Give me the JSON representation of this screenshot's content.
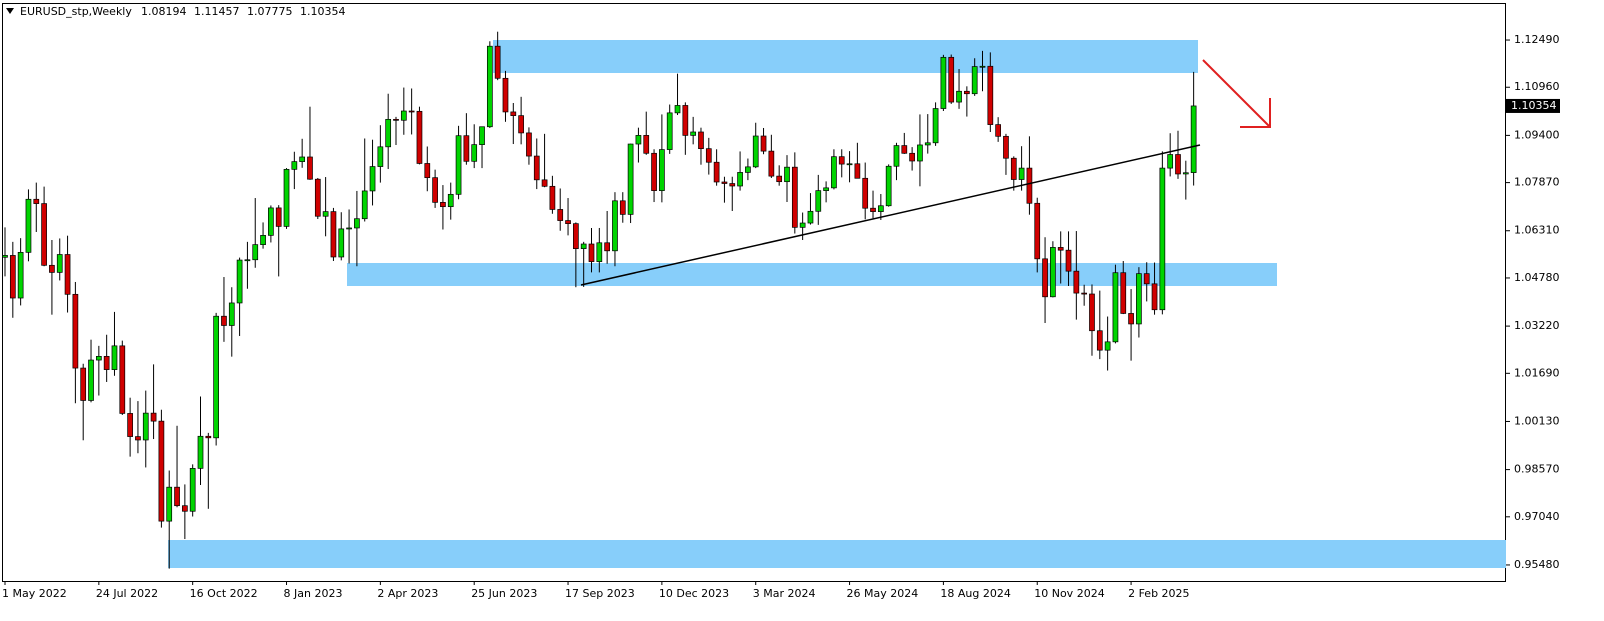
{
  "chart_data": {
    "type": "candlestick",
    "title": "EURUSD_stp,Weekly",
    "categories": [
      "1 May 2022",
      null,
      null,
      null,
      null,
      null,
      null,
      null,
      null,
      null,
      null,
      null,
      "24 Jul 2022",
      null,
      null,
      null,
      null,
      null,
      null,
      null,
      null,
      null,
      null,
      null,
      "16 Oct 2022",
      null,
      null,
      null,
      null,
      null,
      null,
      null,
      null,
      null,
      null,
      null,
      "8 Jan 2023",
      null,
      null,
      null,
      null,
      null,
      null,
      null,
      null,
      null,
      null,
      null,
      "2 Apr 2023",
      null,
      null,
      null,
      null,
      null,
      null,
      null,
      null,
      null,
      null,
      null,
      "25 Jun 2023",
      null,
      null,
      null,
      null,
      null,
      null,
      null,
      null,
      null,
      null,
      null,
      "17 Sep 2023",
      null,
      null,
      null,
      null,
      null,
      null,
      null,
      null,
      null,
      null,
      null,
      "10 Dec 2023",
      null,
      null,
      null,
      null,
      null,
      null,
      null,
      null,
      null,
      null,
      null,
      "3 Mar 2024",
      null,
      null,
      null,
      null,
      null,
      null,
      null,
      null,
      null,
      null,
      null,
      "26 May 2024",
      null,
      null,
      null,
      null,
      null,
      null,
      null,
      null,
      null,
      null,
      null,
      "18 Aug 2024",
      null,
      null,
      null,
      null,
      null,
      null,
      null,
      null,
      null,
      null,
      null,
      "10 Nov 2024",
      null,
      null,
      null,
      null,
      null,
      null,
      null,
      null,
      null,
      null,
      null,
      "2 Feb 2025",
      null,
      null,
      null,
      null,
      null,
      null,
      null,
      null
    ],
    "ohlc": [
      [
        1.0545,
        1.0642,
        1.0483,
        1.0551
      ],
      [
        1.0551,
        1.0595,
        1.0349,
        1.0413
      ],
      [
        1.0413,
        1.0607,
        1.0389,
        1.0561
      ],
      [
        1.0561,
        1.0765,
        1.0532,
        1.0733
      ],
      [
        1.0733,
        1.0787,
        1.0627,
        1.0719
      ],
      [
        1.0719,
        1.0774,
        1.0516,
        1.0519
      ],
      [
        1.0519,
        1.0601,
        1.0359,
        1.0496
      ],
      [
        1.0496,
        1.0606,
        1.047,
        1.0554
      ],
      [
        1.0554,
        1.0615,
        1.0366,
        1.0425
      ],
      [
        1.0425,
        1.0465,
        1.0072,
        1.0186
      ],
      [
        1.0186,
        1.02,
        0.9952,
        1.0081
      ],
      [
        1.0081,
        1.0278,
        1.0075,
        1.0212
      ],
      [
        1.0212,
        1.0258,
        1.0097,
        1.0224
      ],
      [
        1.0224,
        1.0294,
        1.0141,
        1.0181
      ],
      [
        1.0181,
        1.0368,
        1.0161,
        1.0258
      ],
      [
        1.0258,
        1.0275,
        1.0034,
        1.0039
      ],
      [
        1.0039,
        1.009,
        0.9899,
        0.9964
      ],
      [
        0.9964,
        1.0079,
        0.991,
        0.9953
      ],
      [
        0.9953,
        1.0113,
        0.9864,
        1.004
      ],
      [
        1.004,
        1.0198,
        0.9956,
        1.0014
      ],
      [
        1.0014,
        1.0051,
        0.9669,
        0.969
      ],
      [
        0.969,
        0.9854,
        0.9536,
        0.98
      ],
      [
        0.98,
        0.9999,
        0.9735,
        0.974
      ],
      [
        0.974,
        0.9809,
        0.9632,
        0.9722
      ],
      [
        0.9722,
        0.9874,
        0.9705,
        0.9861
      ],
      [
        0.9861,
        1.0094,
        0.9807,
        0.9965
      ],
      [
        0.9965,
        0.9976,
        0.973,
        0.996
      ],
      [
        0.996,
        1.0365,
        0.9935,
        1.0354
      ],
      [
        1.0354,
        1.0481,
        1.0271,
        1.0324
      ],
      [
        1.0324,
        1.0448,
        1.0223,
        1.0397
      ],
      [
        1.0397,
        1.0544,
        1.029,
        1.0536
      ],
      [
        1.0536,
        1.0595,
        1.0443,
        1.0537
      ],
      [
        1.0537,
        1.0737,
        1.0511,
        1.0586
      ],
      [
        1.0586,
        1.0658,
        1.0573,
        1.0616
      ],
      [
        1.0616,
        1.0713,
        1.0593,
        1.0705
      ],
      [
        1.0705,
        1.0714,
        1.0483,
        1.0645
      ],
      [
        1.0645,
        1.0834,
        1.0637,
        1.083
      ],
      [
        1.083,
        1.0887,
        1.0766,
        1.0855
      ],
      [
        1.0855,
        1.0929,
        1.0835,
        1.087
      ],
      [
        1.087,
        1.1033,
        1.0796,
        1.0798
      ],
      [
        1.0798,
        1.0802,
        1.0669,
        1.0678
      ],
      [
        1.0678,
        1.0805,
        1.0613,
        1.0693
      ],
      [
        1.0693,
        1.0705,
        1.0533,
        1.0546
      ],
      [
        1.0546,
        1.0691,
        1.0535,
        1.0637
      ],
      [
        1.0637,
        1.07,
        1.0525,
        1.064
      ],
      [
        1.064,
        1.076,
        1.0516,
        1.067
      ],
      [
        1.067,
        1.093,
        1.0661,
        1.076
      ],
      [
        1.076,
        1.0926,
        1.0713,
        1.0839
      ],
      [
        1.0839,
        1.0973,
        1.0787,
        1.0903
      ],
      [
        1.0903,
        1.1075,
        1.0831,
        1.0992
      ],
      [
        1.0992,
        1.1,
        1.0909,
        1.0989
      ],
      [
        1.0989,
        1.1095,
        1.0942,
        1.1019
      ],
      [
        1.1019,
        1.1092,
        1.0943,
        1.1018
      ],
      [
        1.1018,
        1.1033,
        1.0846,
        1.0849
      ],
      [
        1.0849,
        1.0904,
        1.0759,
        1.0803
      ],
      [
        1.0803,
        1.0829,
        1.0705,
        1.0723
      ],
      [
        1.0723,
        1.0779,
        1.0635,
        1.0709
      ],
      [
        1.0709,
        1.0787,
        1.0667,
        1.0749
      ],
      [
        1.0749,
        1.0971,
        1.0733,
        1.0939
      ],
      [
        1.0939,
        1.1012,
        1.0845,
        1.0856
      ],
      [
        1.0856,
        1.0976,
        1.0834,
        1.091
      ],
      [
        1.091,
        1.0968,
        1.0834,
        1.0968
      ],
      [
        1.0968,
        1.1245,
        1.0964,
        1.1229
      ],
      [
        1.1229,
        1.1276,
        1.1119,
        1.1125
      ],
      [
        1.1125,
        1.1149,
        1.0984,
        1.1016
      ],
      [
        1.1016,
        1.1045,
        1.0912,
        1.1004
      ],
      [
        1.1004,
        1.1065,
        1.0911,
        1.0948
      ],
      [
        1.0948,
        1.0966,
        1.0845,
        1.0873
      ],
      [
        1.0873,
        1.093,
        1.0766,
        1.0796
      ],
      [
        1.0796,
        1.0945,
        1.0772,
        1.0775
      ],
      [
        1.0775,
        1.0809,
        1.0686,
        1.07
      ],
      [
        1.07,
        1.0768,
        1.0631,
        1.0664
      ],
      [
        1.0664,
        1.0737,
        1.0616,
        1.0654
      ],
      [
        1.0654,
        1.0658,
        1.0448,
        1.0573
      ],
      [
        1.0573,
        1.0595,
        1.0449,
        1.0588
      ],
      [
        1.0588,
        1.064,
        1.0496,
        1.0531
      ],
      [
        1.0531,
        1.064,
        1.0496,
        1.0592
      ],
      [
        1.0592,
        1.0695,
        1.0524,
        1.0566
      ],
      [
        1.0566,
        1.0756,
        1.0516,
        1.0728
      ],
      [
        1.0728,
        1.0756,
        1.0657,
        1.0684
      ],
      [
        1.0684,
        1.0913,
        1.0656,
        1.0912
      ],
      [
        1.0912,
        1.0965,
        1.0852,
        1.094
      ],
      [
        1.094,
        1.1017,
        1.0877,
        1.0882
      ],
      [
        1.0882,
        1.0895,
        1.0724,
        1.0761
      ],
      [
        1.0761,
        1.1008,
        1.0723,
        1.0894
      ],
      [
        1.0894,
        1.104,
        1.088,
        1.1013
      ],
      [
        1.1013,
        1.114,
        1.1006,
        1.1037
      ],
      [
        1.1037,
        1.1047,
        1.0877,
        1.094
      ],
      [
        1.094,
        1.1,
        1.0911,
        1.0951
      ],
      [
        1.0951,
        1.0965,
        1.0845,
        1.0897
      ],
      [
        1.0897,
        1.0932,
        1.0813,
        1.0853
      ],
      [
        1.0853,
        1.0895,
        1.0777,
        1.0789
      ],
      [
        1.0789,
        1.0806,
        1.0722,
        1.0784
      ],
      [
        1.0784,
        1.0806,
        1.0695,
        1.0776
      ],
      [
        1.0776,
        1.0888,
        1.0761,
        1.082
      ],
      [
        1.082,
        1.0865,
        1.0795,
        1.0838
      ],
      [
        1.0838,
        1.0981,
        1.0834,
        1.0938
      ],
      [
        1.0938,
        1.0964,
        1.0879,
        1.0889
      ],
      [
        1.0889,
        1.0942,
        1.0802,
        1.0808
      ],
      [
        1.0808,
        1.0843,
        1.0777,
        1.079
      ],
      [
        1.079,
        1.0876,
        1.0724,
        1.0837
      ],
      [
        1.0837,
        1.0885,
        1.0622,
        1.0642
      ],
      [
        1.0642,
        1.069,
        1.0601,
        1.0656
      ],
      [
        1.0656,
        1.0753,
        1.0651,
        1.0694
      ],
      [
        1.0694,
        1.0812,
        1.065,
        1.0761
      ],
      [
        1.0761,
        1.0791,
        1.0723,
        1.077
      ],
      [
        1.077,
        1.0895,
        1.0765,
        1.0871
      ],
      [
        1.0871,
        1.0895,
        1.0804,
        1.0847
      ],
      [
        1.0847,
        1.0889,
        1.0788,
        1.0848
      ],
      [
        1.0848,
        1.0916,
        1.0801,
        1.0801
      ],
      [
        1.0801,
        1.0852,
        1.0668,
        1.0704
      ],
      [
        1.0704,
        1.0761,
        1.0671,
        1.0693
      ],
      [
        1.0693,
        1.075,
        1.0666,
        1.0712
      ],
      [
        1.0712,
        1.0846,
        1.0709,
        1.084
      ],
      [
        1.084,
        1.0916,
        1.0795,
        1.0907
      ],
      [
        1.0907,
        1.0948,
        1.088,
        1.0882
      ],
      [
        1.0882,
        1.0902,
        1.0826,
        1.0857
      ],
      [
        1.0857,
        1.1008,
        1.0775,
        1.0909
      ],
      [
        1.0909,
        1.1009,
        1.0881,
        1.0916
      ],
      [
        1.0916,
        1.1047,
        1.0906,
        1.1027
      ],
      [
        1.1027,
        1.1201,
        1.1019,
        1.1193
      ],
      [
        1.1193,
        1.1202,
        1.1042,
        1.1048
      ],
      [
        1.1048,
        1.1155,
        1.1026,
        1.1083
      ],
      [
        1.1083,
        1.1099,
        1.1001,
        1.1075
      ],
      [
        1.1075,
        1.119,
        1.1068,
        1.1163
      ],
      [
        1.1163,
        1.1214,
        1.1083,
        1.1164
      ],
      [
        1.1164,
        1.1209,
        1.0951,
        1.0975
      ],
      [
        1.0975,
        1.0999,
        1.0919,
        1.0937
      ],
      [
        1.0937,
        1.0945,
        1.0812,
        1.0866
      ],
      [
        1.0866,
        1.0872,
        1.0761,
        1.0797
      ],
      [
        1.0797,
        1.0905,
        1.0761,
        1.0834
      ],
      [
        1.0834,
        1.0937,
        1.0683,
        1.072
      ],
      [
        1.072,
        1.0738,
        1.0496,
        1.054
      ],
      [
        1.054,
        1.061,
        1.0332,
        1.0417
      ],
      [
        1.0417,
        1.0597,
        1.0415,
        1.0577
      ],
      [
        1.0577,
        1.0629,
        1.046,
        1.0568
      ],
      [
        1.0568,
        1.0629,
        1.0452,
        1.05
      ],
      [
        1.05,
        1.063,
        1.0343,
        1.0429
      ],
      [
        1.0429,
        1.0456,
        1.0388,
        1.0426
      ],
      [
        1.0426,
        1.0457,
        1.0226,
        1.0307
      ],
      [
        1.0307,
        1.0437,
        1.0215,
        1.0244
      ],
      [
        1.0244,
        1.0353,
        1.0178,
        1.0271
      ],
      [
        1.0271,
        1.0521,
        1.0266,
        1.0495
      ],
      [
        1.0495,
        1.0533,
        1.0361,
        1.0363
      ],
      [
        1.0363,
        1.0442,
        1.021,
        1.0329
      ],
      [
        1.0329,
        1.0513,
        1.0285,
        1.0492
      ],
      [
        1.0492,
        1.0529,
        1.0402,
        1.0459
      ],
      [
        1.0459,
        1.0528,
        1.0359,
        1.0375
      ],
      [
        1.0375,
        1.0888,
        1.036,
        1.0834
      ],
      [
        1.0834,
        1.0947,
        1.0807,
        1.0878
      ],
      [
        1.0878,
        1.0955,
        1.0799,
        1.0815
      ],
      [
        1.0815,
        1.0858,
        1.0732,
        1.0819
      ],
      [
        1.08194,
        1.11457,
        1.07775,
        1.10354
      ]
    ],
    "up_color": "#00d400",
    "down_color": "#d00000",
    "ylim": [
      0.9496,
      1.1369
    ],
    "yticks": [
      {
        "value": 0.9548,
        "label": "0.95480"
      },
      {
        "value": 0.9704,
        "label": "0.97040"
      },
      {
        "value": 0.9857,
        "label": "0.98570"
      },
      {
        "value": 1.0013,
        "label": "1.00130"
      },
      {
        "value": 1.0169,
        "label": "1.01690"
      },
      {
        "value": 1.0322,
        "label": "1.03220"
      },
      {
        "value": 1.0478,
        "label": "1.04780"
      },
      {
        "value": 1.0631,
        "label": "1.06310"
      },
      {
        "value": 1.0787,
        "label": "1.07870"
      },
      {
        "value": 1.094,
        "label": "1.09400"
      },
      {
        "value": 1.1096,
        "label": "1.10960"
      },
      {
        "value": 1.1249,
        "label": "1.12490"
      }
    ]
  }
}
